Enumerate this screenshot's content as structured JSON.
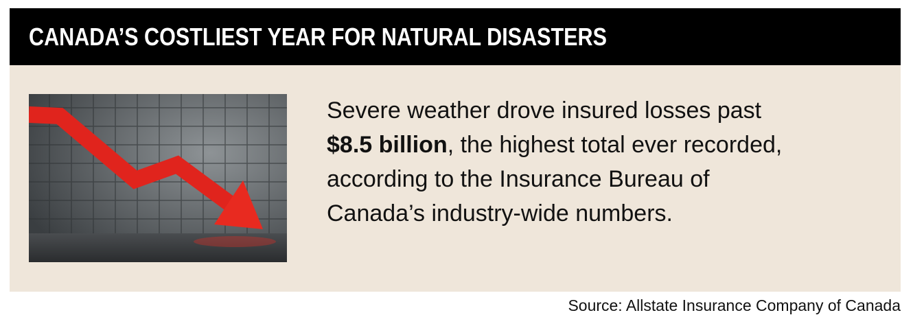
{
  "header": {
    "title": "CANADA’S COSTLIEST YEAR FOR NATURAL DISASTERS"
  },
  "body": {
    "text_before": "Severe weather drove insured losses past ",
    "emphasis": "$8.5 billion",
    "text_after": ", the highest total ever recorded, according to the Insurance Bureau of Canada’s industry-wide numbers."
  },
  "footer": {
    "source": "Source: Allstate Insurance Company of Canada"
  }
}
